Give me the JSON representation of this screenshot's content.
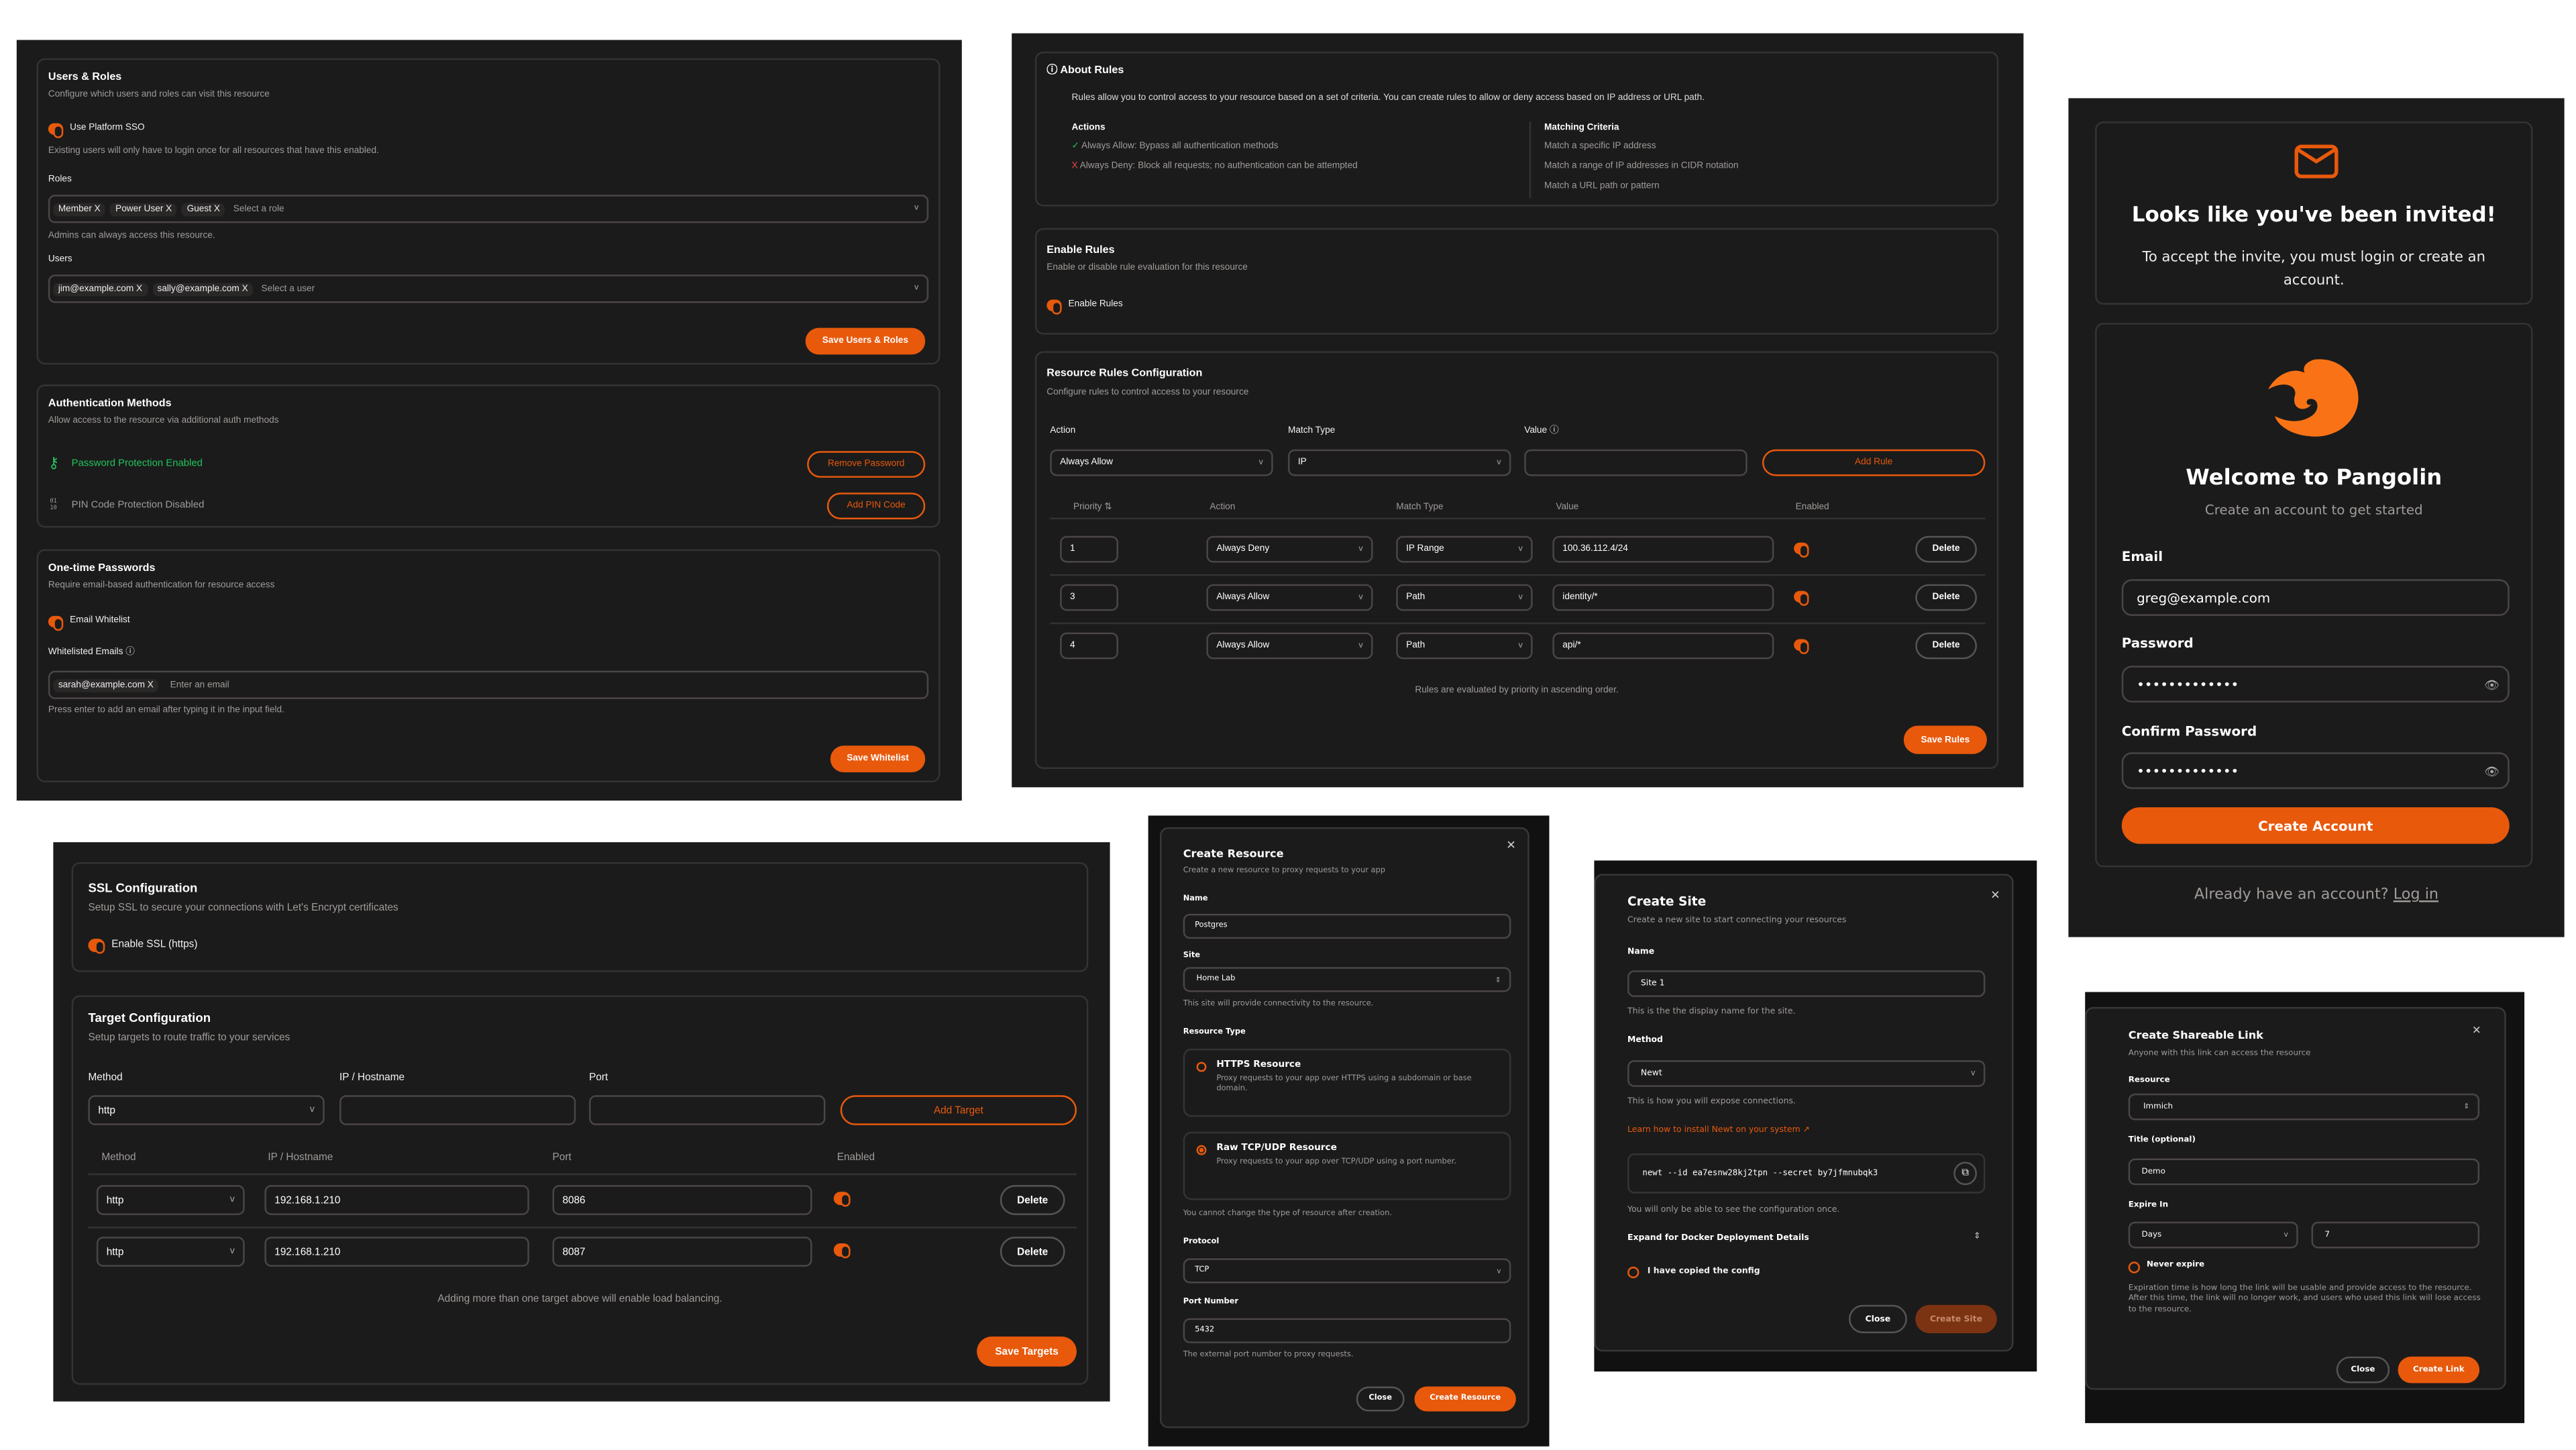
{
  "colors": {
    "accent": "#e8590c",
    "background": "#1b1b1b",
    "success": "#22c55e",
    "danger": "#ef4444"
  },
  "users_roles": {
    "title": "Users & Roles",
    "description": "Configure which users and roles can visit this resource",
    "sso_label": "Use Platform SSO",
    "sso_enabled": true,
    "sso_help": "Existing users will only have to login once for all resources that have this enabled.",
    "roles_label": "Roles",
    "roles": [
      "Member",
      "Power User",
      "Guest"
    ],
    "roles_placeholder": "Select a role",
    "roles_help": "Admins can always access this resource.",
    "users_label": "Users",
    "users": [
      "jim@example.com",
      "sally@example.com"
    ],
    "users_placeholder": "Select a user",
    "save": "Save Users & Roles",
    "tag_remove": "X",
    "chevron": "v"
  },
  "auth_methods": {
    "title": "Authentication Methods",
    "description": "Allow access to the resource via additional auth methods",
    "password_status": "Password Protection Enabled",
    "remove_password": "Remove Password",
    "pin_status": "PIN Code Protection Disabled",
    "add_pin": "Add PIN Code",
    "pin_icon": "01\n10"
  },
  "otp": {
    "title": "One-time Passwords",
    "description": "Require email-based authentication for resource access",
    "toggle_label": "Email Whitelist",
    "enabled": true,
    "emails_label": "Whitelisted Emails",
    "emails": [
      "sarah@example.com"
    ],
    "placeholder": "Enter an email",
    "help": "Press enter to add an email after typing it in the input field.",
    "save": "Save Whitelist"
  },
  "about_rules": {
    "title": "About Rules",
    "text": "Rules allow you to control access to your resource based on a set of criteria. You can create rules to allow or deny access based on IP address or URL path.",
    "actions_title": "Actions",
    "actions": [
      "Always Allow: Bypass all authentication methods",
      "Always Deny: Block all requests; no authentication can be attempted"
    ],
    "criteria_title": "Matching Criteria",
    "criteria": [
      "Match a specific IP address",
      "Match a range of IP addresses in CIDR notation",
      "Match a URL path or pattern"
    ],
    "check": "✓",
    "cross": "X"
  },
  "enable_rules": {
    "title": "Enable Rules",
    "description": "Enable or disable rule evaluation for this resource",
    "toggle_label": "Enable Rules",
    "enabled": true
  },
  "rules_config": {
    "title": "Resource Rules Configuration",
    "description": "Configure rules to control access to your resource",
    "form": {
      "action_label": "Action",
      "action_value": "Always Allow",
      "match_label": "Match Type",
      "match_value": "IP",
      "value_label": "Value",
      "value": "",
      "add": "Add Rule"
    },
    "columns": [
      "Priority",
      "Action",
      "Match Type",
      "Value",
      "Enabled"
    ],
    "sort_icon": "⇅",
    "rows": [
      {
        "priority": "1",
        "action": "Always Deny",
        "match": "IP Range",
        "value": "100.36.112.4/24",
        "enabled": true
      },
      {
        "priority": "3",
        "action": "Always Allow",
        "match": "Path",
        "value": "identity/*",
        "enabled": true
      },
      {
        "priority": "4",
        "action": "Always Allow",
        "match": "Path",
        "value": "api/*",
        "enabled": true
      }
    ],
    "delete": "Delete",
    "footer": "Rules are evaluated by priority in ascending order.",
    "save": "Save Rules"
  },
  "invite": {
    "title": "Looks like you've been invited!",
    "text": "To accept the invite, you must login or create an account.",
    "welcome": "Welcome to Pangolin",
    "subtitle": "Create an account to get started",
    "email_label": "Email",
    "email": "greg@example.com",
    "password_label": "Password",
    "password": "•••••••••••••",
    "confirm_label": "Confirm Password",
    "confirm": "•••••••••••••",
    "create": "Create Account",
    "already": "Already have an account?",
    "login": "Log in"
  },
  "ssl": {
    "title": "SSL Configuration",
    "description": "Setup SSL to secure your connections with Let's Encrypt certificates",
    "toggle_label": "Enable SSL (https)",
    "enabled": true
  },
  "targets": {
    "title": "Target Configuration",
    "description": "Setup targets to route traffic to your services",
    "form": {
      "method_label": "Method",
      "method": "http",
      "ip_label": "IP / Hostname",
      "ip": "",
      "port_label": "Port",
      "port": "",
      "add": "Add Target"
    },
    "columns": [
      "Method",
      "IP / Hostname",
      "Port",
      "Enabled"
    ],
    "rows": [
      {
        "method": "http",
        "ip": "192.168.1.210",
        "port": "8086",
        "enabled": true
      },
      {
        "method": "http",
        "ip": "192.168.1.210",
        "port": "8087",
        "enabled": true
      }
    ],
    "delete": "Delete",
    "footer": "Adding more than one target above will enable load balancing.",
    "save": "Save Targets"
  },
  "create_resource": {
    "title": "Create Resource",
    "description": "Create a new resource to proxy requests to your app",
    "name_label": "Name",
    "name": "Postgres",
    "site_label": "Site",
    "site": "Home Lab",
    "site_help": "This site will provide connectivity to the resource.",
    "type_label": "Resource Type",
    "https_title": "HTTPS Resource",
    "https_desc": "Proxy requests to your app over HTTPS using a subdomain or base domain.",
    "raw_title": "Raw TCP/UDP Resource",
    "raw_desc": "Proxy requests to your app over TCP/UDP using a port number.",
    "selected_type": "Raw TCP/UDP Resource",
    "type_help": "You cannot change the type of resource after creation.",
    "protocol_label": "Protocol",
    "protocol": "TCP",
    "port_label": "Port Number",
    "port": "5432",
    "port_help": "The external port number to proxy requests.",
    "close": "Close",
    "create": "Create Resource"
  },
  "create_site": {
    "title": "Create Site",
    "description": "Create a new site to start connecting your resources",
    "name_label": "Name",
    "name": "Site 1",
    "name_help": "This is the the display name for the site.",
    "method_label": "Method",
    "method": "Newt",
    "method_help": "This is how you will expose connections.",
    "learn_link": "Learn how to install Newt on your system",
    "command": "newt --id ea7esnw28kj2tpn --secret by7jfmnubqk3",
    "once": "You will only be able to see the configuration once.",
    "expand": "Expand for Docker Deployment Details",
    "copied": "I have copied the config",
    "close": "Close",
    "create": "Create Site"
  },
  "share_link": {
    "title": "Create Shareable Link",
    "description": "Anyone with this link can access the resource",
    "resource_label": "Resource",
    "resource": "Immich",
    "title_label": "Title (optional)",
    "title_value": "Demo",
    "expire_label": "Expire In",
    "unit": "Days",
    "amount": "7",
    "never": "Never expire",
    "help": "Expiration time is how long the link will be usable and provide access to the resource. After this time, the link will no longer work, and users who used this link will lose access to the resource.",
    "close": "Close",
    "create": "Create Link"
  }
}
